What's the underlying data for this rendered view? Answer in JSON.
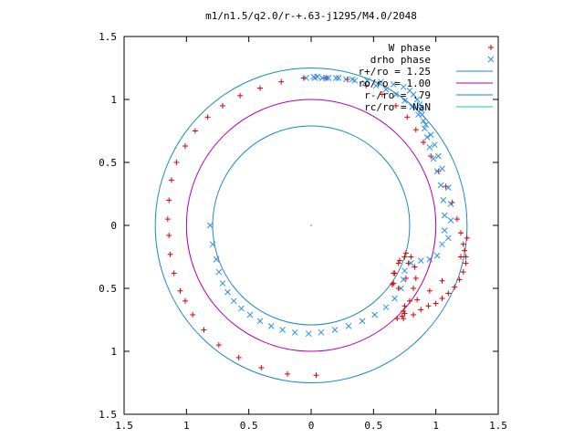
{
  "chart_data": {
    "type": "scatter",
    "title": "m1/n1.5/q2.0/r-+.63-j1295/M4.0/2048",
    "xlim": [
      -1.5,
      1.5
    ],
    "ylim": [
      -1.5,
      1.5
    ],
    "x_ticks": [
      -1.5,
      -1,
      -0.5,
      0,
      0.5,
      1,
      1.5
    ],
    "x_tick_labels": [
      "1.5",
      "1",
      "0.5",
      "0",
      "0.5",
      "1",
      "1.5"
    ],
    "y_ticks": [
      1.5,
      1,
      0.5,
      0,
      -0.5,
      -1,
      -1.5
    ],
    "y_tick_labels": [
      "1.5",
      "1",
      "0.5",
      "0",
      "0.5",
      "1",
      "1.5"
    ],
    "grid": false,
    "legend_position": "top-right",
    "center_point": [
      0,
      0
    ],
    "colors": {
      "w_phase": "#dd0000",
      "drho_phase": "#2e8ee6",
      "r_plus": "#1a86c8",
      "r_o": "#b000b0",
      "r_minus": "#1a86c8",
      "r_c": "#00c8d0"
    },
    "series": [
      {
        "name": "W phase",
        "kind": "points",
        "marker": "+",
        "x": [
          0.04,
          -0.19,
          -0.4,
          -0.58,
          -0.74,
          -0.86,
          -0.95,
          -1.01,
          -1.05,
          -1.1,
          -1.13,
          -1.14,
          -1.15,
          -1.14,
          -1.12,
          -1.08,
          -1.01,
          -0.93,
          -0.83,
          -0.71,
          -0.57,
          -0.41,
          -0.24,
          -0.06,
          0.12,
          0.29,
          0.44,
          0.57,
          0.68,
          0.77,
          0.84,
          0.9,
          0.96,
          1.02,
          1.08,
          1.13,
          1.17,
          1.2,
          1.22,
          1.23,
          1.24,
          1.25,
          1.24,
          1.22,
          1.19,
          1.15,
          1.1,
          1.05,
          1.0,
          0.94,
          0.88,
          0.82,
          0.74,
          0.73,
          0.74,
          0.79,
          0.82,
          0.84,
          0.83,
          0.8,
          0.76,
          0.71,
          0.66,
          0.65,
          0.7,
          0.76,
          0.78,
          0.75,
          0.7,
          0.67,
          0.66,
          1.2,
          1.05,
          0.95,
          0.85,
          0.75,
          0.69,
          0.75
        ],
        "y": [
          -1.19,
          -1.18,
          -1.13,
          -1.05,
          -0.95,
          -0.83,
          -0.71,
          -0.6,
          -0.52,
          -0.38,
          -0.23,
          -0.08,
          0.05,
          0.2,
          0.36,
          0.5,
          0.63,
          0.75,
          0.86,
          0.95,
          1.03,
          1.09,
          1.14,
          1.17,
          1.17,
          1.16,
          1.11,
          1.04,
          0.95,
          0.86,
          0.76,
          0.66,
          0.55,
          0.43,
          0.31,
          0.18,
          0.05,
          -0.06,
          -0.15,
          -0.2,
          -0.25,
          -0.1,
          -0.3,
          -0.37,
          -0.43,
          -0.49,
          -0.54,
          -0.58,
          -0.62,
          -0.64,
          -0.67,
          -0.71,
          -0.74,
          -0.72,
          -0.68,
          -0.6,
          -0.5,
          -0.42,
          -0.33,
          -0.25,
          -0.22,
          -0.28,
          -0.38,
          -0.47,
          -0.5,
          -0.42,
          -0.3,
          -0.25,
          -0.3,
          -0.38,
          -0.46,
          -0.25,
          -0.44,
          -0.52,
          -0.59,
          -0.64,
          -0.74,
          -0.7
        ]
      },
      {
        "name": "drho phase",
        "kind": "points",
        "marker": "x",
        "x": [
          -0.81,
          -0.79,
          -0.76,
          -0.74,
          -0.71,
          -0.67,
          -0.62,
          -0.56,
          -0.49,
          -0.41,
          -0.32,
          -0.23,
          -0.13,
          -0.02,
          0.08,
          0.19,
          0.3,
          0.41,
          0.51,
          0.6,
          0.67,
          0.72,
          0.74,
          0.75,
          0.8,
          0.88,
          0.95,
          1.01,
          1.05,
          1.07,
          1.07,
          1.06,
          1.04,
          1.01,
          0.98,
          0.95,
          0.93,
          0.91,
          0.9,
          0.89,
          0.88,
          0.87,
          0.85,
          0.82,
          0.79,
          0.74,
          0.66,
          0.56,
          0.45,
          0.33,
          0.22,
          0.12,
          0.03,
          -0.04,
          1.1,
          1.12,
          1.12,
          1.1,
          1.05,
          1.02,
          0.99,
          0.96,
          0.92,
          0.86,
          0.81,
          0.75,
          0.68,
          0.6,
          0.52,
          0.43,
          0.35,
          0.28,
          0.2,
          0.14,
          0.09,
          0.05,
          0.02
        ],
        "y": [
          0,
          -0.15,
          -0.27,
          -0.37,
          -0.46,
          -0.53,
          -0.6,
          -0.66,
          -0.71,
          -0.76,
          -0.8,
          -0.83,
          -0.85,
          -0.86,
          -0.85,
          -0.83,
          -0.8,
          -0.76,
          -0.71,
          -0.65,
          -0.58,
          -0.5,
          -0.43,
          -0.36,
          -0.3,
          -0.28,
          -0.27,
          -0.24,
          -0.15,
          -0.04,
          0.08,
          0.2,
          0.32,
          0.43,
          0.53,
          0.62,
          0.7,
          0.77,
          0.83,
          0.88,
          0.92,
          0.96,
          1.0,
          1.04,
          1.07,
          1.1,
          1.12,
          1.14,
          1.15,
          1.16,
          1.17,
          1.17,
          1.17,
          1.17,
          -0.1,
          0.04,
          0.17,
          0.3,
          0.45,
          0.55,
          0.64,
          0.72,
          0.8,
          0.88,
          0.94,
          0.99,
          1.04,
          1.08,
          1.11,
          1.13,
          1.15,
          1.16,
          1.17,
          1.17,
          1.17,
          1.18,
          1.18
        ]
      },
      {
        "name": "r+/ro = 1.25",
        "kind": "circle",
        "r": 1.25
      },
      {
        "name": "ro/ro = 1.00",
        "kind": "circle",
        "r": 1.0
      },
      {
        "name": "r-/ro = .79",
        "kind": "circle",
        "r": 0.79
      },
      {
        "name": "rc/ro = NaN",
        "kind": "circle",
        "r": null
      }
    ]
  }
}
